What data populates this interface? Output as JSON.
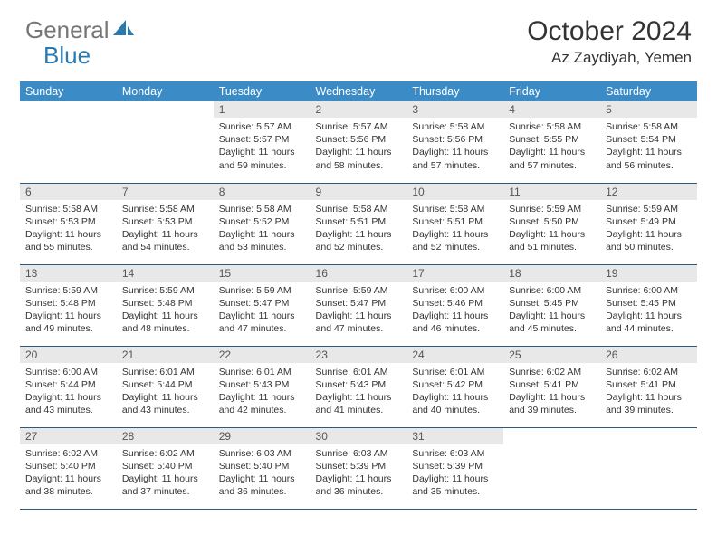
{
  "logo": {
    "text_gray": "General",
    "text_blue": "Blue",
    "icon_color": "#2a7ab0"
  },
  "title": "October 2024",
  "location": "Az Zaydiyah, Yemen",
  "colors": {
    "header_bg": "#3b8bc6",
    "header_text": "#ffffff",
    "daynum_bg": "#e8e8e8",
    "border": "#2a5a80",
    "body_text": "#333333",
    "logo_gray": "#767676",
    "logo_blue": "#2a7ab0"
  },
  "weekdays": [
    "Sunday",
    "Monday",
    "Tuesday",
    "Wednesday",
    "Thursday",
    "Friday",
    "Saturday"
  ],
  "weeks": [
    [
      null,
      null,
      {
        "n": "1",
        "sr": "Sunrise: 5:57 AM",
        "ss": "Sunset: 5:57 PM",
        "dl": "Daylight: 11 hours and 59 minutes."
      },
      {
        "n": "2",
        "sr": "Sunrise: 5:57 AM",
        "ss": "Sunset: 5:56 PM",
        "dl": "Daylight: 11 hours and 58 minutes."
      },
      {
        "n": "3",
        "sr": "Sunrise: 5:58 AM",
        "ss": "Sunset: 5:56 PM",
        "dl": "Daylight: 11 hours and 57 minutes."
      },
      {
        "n": "4",
        "sr": "Sunrise: 5:58 AM",
        "ss": "Sunset: 5:55 PM",
        "dl": "Daylight: 11 hours and 57 minutes."
      },
      {
        "n": "5",
        "sr": "Sunrise: 5:58 AM",
        "ss": "Sunset: 5:54 PM",
        "dl": "Daylight: 11 hours and 56 minutes."
      }
    ],
    [
      {
        "n": "6",
        "sr": "Sunrise: 5:58 AM",
        "ss": "Sunset: 5:53 PM",
        "dl": "Daylight: 11 hours and 55 minutes."
      },
      {
        "n": "7",
        "sr": "Sunrise: 5:58 AM",
        "ss": "Sunset: 5:53 PM",
        "dl": "Daylight: 11 hours and 54 minutes."
      },
      {
        "n": "8",
        "sr": "Sunrise: 5:58 AM",
        "ss": "Sunset: 5:52 PM",
        "dl": "Daylight: 11 hours and 53 minutes."
      },
      {
        "n": "9",
        "sr": "Sunrise: 5:58 AM",
        "ss": "Sunset: 5:51 PM",
        "dl": "Daylight: 11 hours and 52 minutes."
      },
      {
        "n": "10",
        "sr": "Sunrise: 5:58 AM",
        "ss": "Sunset: 5:51 PM",
        "dl": "Daylight: 11 hours and 52 minutes."
      },
      {
        "n": "11",
        "sr": "Sunrise: 5:59 AM",
        "ss": "Sunset: 5:50 PM",
        "dl": "Daylight: 11 hours and 51 minutes."
      },
      {
        "n": "12",
        "sr": "Sunrise: 5:59 AM",
        "ss": "Sunset: 5:49 PM",
        "dl": "Daylight: 11 hours and 50 minutes."
      }
    ],
    [
      {
        "n": "13",
        "sr": "Sunrise: 5:59 AM",
        "ss": "Sunset: 5:48 PM",
        "dl": "Daylight: 11 hours and 49 minutes."
      },
      {
        "n": "14",
        "sr": "Sunrise: 5:59 AM",
        "ss": "Sunset: 5:48 PM",
        "dl": "Daylight: 11 hours and 48 minutes."
      },
      {
        "n": "15",
        "sr": "Sunrise: 5:59 AM",
        "ss": "Sunset: 5:47 PM",
        "dl": "Daylight: 11 hours and 47 minutes."
      },
      {
        "n": "16",
        "sr": "Sunrise: 5:59 AM",
        "ss": "Sunset: 5:47 PM",
        "dl": "Daylight: 11 hours and 47 minutes."
      },
      {
        "n": "17",
        "sr": "Sunrise: 6:00 AM",
        "ss": "Sunset: 5:46 PM",
        "dl": "Daylight: 11 hours and 46 minutes."
      },
      {
        "n": "18",
        "sr": "Sunrise: 6:00 AM",
        "ss": "Sunset: 5:45 PM",
        "dl": "Daylight: 11 hours and 45 minutes."
      },
      {
        "n": "19",
        "sr": "Sunrise: 6:00 AM",
        "ss": "Sunset: 5:45 PM",
        "dl": "Daylight: 11 hours and 44 minutes."
      }
    ],
    [
      {
        "n": "20",
        "sr": "Sunrise: 6:00 AM",
        "ss": "Sunset: 5:44 PM",
        "dl": "Daylight: 11 hours and 43 minutes."
      },
      {
        "n": "21",
        "sr": "Sunrise: 6:01 AM",
        "ss": "Sunset: 5:44 PM",
        "dl": "Daylight: 11 hours and 43 minutes."
      },
      {
        "n": "22",
        "sr": "Sunrise: 6:01 AM",
        "ss": "Sunset: 5:43 PM",
        "dl": "Daylight: 11 hours and 42 minutes."
      },
      {
        "n": "23",
        "sr": "Sunrise: 6:01 AM",
        "ss": "Sunset: 5:43 PM",
        "dl": "Daylight: 11 hours and 41 minutes."
      },
      {
        "n": "24",
        "sr": "Sunrise: 6:01 AM",
        "ss": "Sunset: 5:42 PM",
        "dl": "Daylight: 11 hours and 40 minutes."
      },
      {
        "n": "25",
        "sr": "Sunrise: 6:02 AM",
        "ss": "Sunset: 5:41 PM",
        "dl": "Daylight: 11 hours and 39 minutes."
      },
      {
        "n": "26",
        "sr": "Sunrise: 6:02 AM",
        "ss": "Sunset: 5:41 PM",
        "dl": "Daylight: 11 hours and 39 minutes."
      }
    ],
    [
      {
        "n": "27",
        "sr": "Sunrise: 6:02 AM",
        "ss": "Sunset: 5:40 PM",
        "dl": "Daylight: 11 hours and 38 minutes."
      },
      {
        "n": "28",
        "sr": "Sunrise: 6:02 AM",
        "ss": "Sunset: 5:40 PM",
        "dl": "Daylight: 11 hours and 37 minutes."
      },
      {
        "n": "29",
        "sr": "Sunrise: 6:03 AM",
        "ss": "Sunset: 5:40 PM",
        "dl": "Daylight: 11 hours and 36 minutes."
      },
      {
        "n": "30",
        "sr": "Sunrise: 6:03 AM",
        "ss": "Sunset: 5:39 PM",
        "dl": "Daylight: 11 hours and 36 minutes."
      },
      {
        "n": "31",
        "sr": "Sunrise: 6:03 AM",
        "ss": "Sunset: 5:39 PM",
        "dl": "Daylight: 11 hours and 35 minutes."
      },
      null,
      null
    ]
  ]
}
